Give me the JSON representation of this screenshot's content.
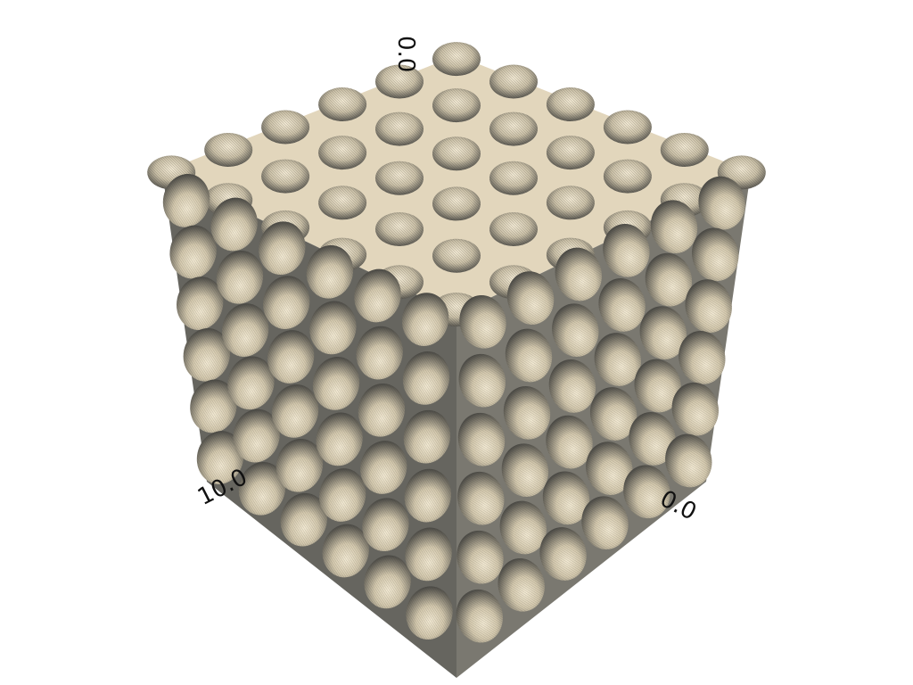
{
  "viewer": {
    "colors": {
      "background": "#ffffff",
      "top_face": "#e2d6bc",
      "left_face": "#66655f",
      "right_face": "#7a7870",
      "pit_light": "#e9dfc6",
      "pit_dark": "#3e3d39"
    },
    "axes": {
      "top_label": "0.0",
      "left_label": "10.0",
      "right_label": "0.0"
    }
  }
}
